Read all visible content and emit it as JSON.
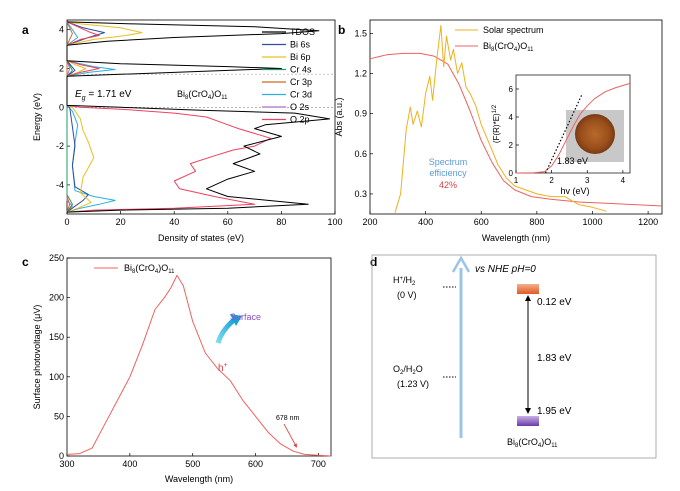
{
  "panels": {
    "a": "a",
    "b": "b",
    "c": "c",
    "d": "d"
  },
  "chart_data": [
    {
      "id": "a",
      "type": "line",
      "xlabel": "Density of states (eV)",
      "ylabel": "Energy (eV)",
      "xlim": [
        0,
        100
      ],
      "ylim": [
        -5.5,
        4.5
      ],
      "xticks": [
        "0",
        "20",
        "40",
        "60",
        "80",
        "100"
      ],
      "yticks": [
        "-4",
        "-2",
        "0",
        "2",
        "4"
      ],
      "annotations": {
        "eg_label": "E",
        "eg_sub": "g",
        "eg_value": " = 1.71 eV",
        "formula": "Bi8(CrO4)O11"
      },
      "legend": [
        "TDOS",
        "Bi 6s",
        "Bi 6p",
        "Cr 4s",
        "Cr 3p",
        "Cr 3d",
        "O 2s",
        "O 2p"
      ],
      "colors": {
        "TDOS": "#000000",
        "Bi 6s": "#2a4fa0",
        "Bi 6p": "#e8c020",
        "Cr 4s": "#1e9e6a",
        "Cr 3p": "#d2691e",
        "Cr 3d": "#2ab0e0",
        "O 2s": "#b070d0",
        "O 2p": "#f04060"
      },
      "series": [
        {
          "name": "TDOS",
          "points": [
            [
              0,
              -5.4
            ],
            [
              20,
              -5.3
            ],
            [
              60,
              -5.2
            ],
            [
              90,
              -5.0
            ],
            [
              60,
              -4.6
            ],
            [
              52,
              -4.2
            ],
            [
              60,
              -3.7
            ],
            [
              70,
              -3.3
            ],
            [
              62,
              -2.9
            ],
            [
              72,
              -2.4
            ],
            [
              66,
              -2.0
            ],
            [
              80,
              -1.5
            ],
            [
              70,
              -1.1
            ],
            [
              74,
              -0.9
            ],
            [
              90,
              -0.7
            ],
            [
              98,
              -0.6
            ],
            [
              85,
              -0.3
            ],
            [
              50,
              -0.15
            ],
            [
              20,
              0.0
            ],
            [
              0,
              0.1
            ],
            [
              0,
              1.6
            ],
            [
              20,
              1.7
            ],
            [
              60,
              1.9
            ],
            [
              80,
              2.0
            ],
            [
              60,
              2.1
            ],
            [
              20,
              2.25
            ],
            [
              0,
              2.4
            ],
            [
              0,
              3.2
            ],
            [
              15,
              3.4
            ],
            [
              40,
              3.6
            ],
            [
              80,
              3.8
            ],
            [
              94,
              3.95
            ],
            [
              70,
              4.15
            ],
            [
              25,
              4.3
            ],
            [
              0,
              4.4
            ]
          ]
        },
        {
          "name": "O 2p",
          "points": [
            [
              0,
              -5.4
            ],
            [
              10,
              -5.3
            ],
            [
              40,
              -5.2
            ],
            [
              70,
              -5.0
            ],
            [
              55,
              -4.6
            ],
            [
              42,
              -4.2
            ],
            [
              40,
              -3.8
            ],
            [
              48,
              -3.3
            ],
            [
              46,
              -2.9
            ],
            [
              55,
              -2.5
            ],
            [
              62,
              -2.2
            ],
            [
              70,
              -2.0
            ],
            [
              76,
              -1.6
            ],
            [
              64,
              -1.1
            ],
            [
              58,
              -0.8
            ],
            [
              52,
              -0.5
            ],
            [
              40,
              -0.3
            ],
            [
              20,
              -0.1
            ],
            [
              5,
              0.0
            ],
            [
              0,
              0.1
            ],
            [
              0,
              1.6
            ],
            [
              5,
              1.8
            ],
            [
              12,
              2.0
            ],
            [
              5,
              2.2
            ],
            [
              0,
              2.4
            ],
            [
              0,
              3.2
            ],
            [
              5,
              3.5
            ],
            [
              12,
              3.7
            ],
            [
              8,
              3.9
            ],
            [
              0,
              4.4
            ]
          ]
        },
        {
          "name": "Bi 6p",
          "points": [
            [
              0,
              -5.4
            ],
            [
              4,
              -5.2
            ],
            [
              9,
              -4.9
            ],
            [
              5,
              -4.4
            ],
            [
              6,
              -3.6
            ],
            [
              10,
              -2.6
            ],
            [
              8,
              -1.8
            ],
            [
              6,
              -1.2
            ],
            [
              5,
              -0.6
            ],
            [
              2,
              0.0
            ],
            [
              0,
              0.1
            ],
            [
              0,
              1.6
            ],
            [
              4,
              1.8
            ],
            [
              7,
              2.0
            ],
            [
              3,
              2.2
            ],
            [
              0,
              2.4
            ],
            [
              0,
              3.2
            ],
            [
              10,
              3.5
            ],
            [
              22,
              3.7
            ],
            [
              28,
              3.85
            ],
            [
              20,
              4.1
            ],
            [
              5,
              4.3
            ],
            [
              0,
              4.4
            ]
          ]
        },
        {
          "name": "Bi 6s",
          "points": [
            [
              0,
              -5.4
            ],
            [
              3,
              -5.1
            ],
            [
              6,
              -4.8
            ],
            [
              8,
              -4.5
            ],
            [
              3,
              -4.1
            ],
            [
              2,
              -3.0
            ],
            [
              3,
              -2.0
            ],
            [
              2,
              -1.0
            ],
            [
              1,
              0.0
            ],
            [
              0,
              0.1
            ],
            [
              0,
              1.6
            ],
            [
              3,
              1.9
            ],
            [
              0,
              2.4
            ],
            [
              0,
              3.2
            ],
            [
              8,
              3.6
            ],
            [
              14,
              3.85
            ],
            [
              6,
              4.1
            ],
            [
              0,
              4.4
            ]
          ]
        },
        {
          "name": "Cr 3d",
          "points": [
            [
              0,
              -5.4
            ],
            [
              5,
              -5.2
            ],
            [
              12,
              -5.0
            ],
            [
              18,
              -4.8
            ],
            [
              10,
              -4.6
            ],
            [
              3,
              -4.3
            ],
            [
              2,
              -3.0
            ],
            [
              3,
              -1.8
            ],
            [
              4,
              -0.9
            ],
            [
              2,
              -0.2
            ],
            [
              0,
              0.1
            ],
            [
              0,
              1.6
            ],
            [
              8,
              1.8
            ],
            [
              18,
              1.95
            ],
            [
              10,
              2.1
            ],
            [
              0,
              2.4
            ],
            [
              0,
              3.2
            ],
            [
              4,
              3.6
            ],
            [
              2,
              4.0
            ],
            [
              0,
              4.4
            ]
          ]
        },
        {
          "name": "Cr 4s",
          "points": [
            [
              0,
              -5.4
            ],
            [
              2,
              -5.0
            ],
            [
              0,
              -4.5
            ],
            [
              0,
              0.1
            ],
            [
              0,
              1.6
            ],
            [
              2,
              1.9
            ],
            [
              0,
              2.4
            ]
          ]
        },
        {
          "name": "Cr 3p",
          "points": [
            [
              0,
              -5.4
            ],
            [
              1,
              -5.0
            ],
            [
              0,
              -4.6
            ],
            [
              0,
              3.2
            ],
            [
              2,
              3.8
            ],
            [
              0,
              4.4
            ]
          ]
        },
        {
          "name": "O 2s",
          "points": [
            [
              0,
              -5.4
            ],
            [
              2,
              -5.1
            ],
            [
              0,
              -4.8
            ],
            [
              0,
              1.6
            ],
            [
              1,
              2.0
            ],
            [
              0,
              2.4
            ]
          ]
        }
      ]
    },
    {
      "id": "b",
      "type": "line",
      "xlabel": "Wavelength (nm)",
      "ylabel": "Abs (a.u.)",
      "xlim": [
        200,
        1250
      ],
      "ylim": [
        0.15,
        1.6
      ],
      "xticks": [
        "200",
        "400",
        "600",
        "800",
        "1000",
        "1200"
      ],
      "yticks": [
        "0.3",
        "0.6",
        "0.9",
        "1.2",
        "1.5"
      ],
      "legend": [
        "Solar spectrum",
        "Bi8(CrO4)O11"
      ],
      "annotations": {
        "line1": "Spectrum",
        "line2": "efficiency",
        "pct": "42%"
      },
      "series": [
        {
          "name": "Bi8(CrO4)O11",
          "color": "#f06060",
          "points": [
            [
              200,
              1.31
            ],
            [
              260,
              1.34
            ],
            [
              320,
              1.35
            ],
            [
              380,
              1.35
            ],
            [
              430,
              1.33
            ],
            [
              480,
              1.27
            ],
            [
              520,
              1.12
            ],
            [
              560,
              0.92
            ],
            [
              600,
              0.7
            ],
            [
              640,
              0.53
            ],
            [
              680,
              0.4
            ],
            [
              720,
              0.33
            ],
            [
              780,
              0.28
            ],
            [
              850,
              0.26
            ],
            [
              950,
              0.24
            ],
            [
              1050,
              0.23
            ],
            [
              1150,
              0.22
            ],
            [
              1250,
              0.21
            ]
          ]
        },
        {
          "name": "Solar spectrum",
          "color": "#f0b020",
          "points": [
            [
              290,
              0.16
            ],
            [
              310,
              0.3
            ],
            [
              330,
              0.78
            ],
            [
              345,
              0.95
            ],
            [
              355,
              0.82
            ],
            [
              370,
              0.92
            ],
            [
              385,
              0.8
            ],
            [
              400,
              1.05
            ],
            [
              415,
              1.18
            ],
            [
              425,
              1.0
            ],
            [
              440,
              1.3
            ],
            [
              455,
              1.56
            ],
            [
              465,
              1.25
            ],
            [
              475,
              1.48
            ],
            [
              490,
              1.3
            ],
            [
              500,
              1.38
            ],
            [
              515,
              1.2
            ],
            [
              530,
              1.28
            ],
            [
              545,
              1.1
            ],
            [
              560,
              1.05
            ],
            [
              580,
              0.96
            ],
            [
              600,
              0.82
            ],
            [
              620,
              0.72
            ],
            [
              640,
              0.62
            ],
            [
              660,
              0.52
            ],
            [
              690,
              0.42
            ],
            [
              720,
              0.36
            ],
            [
              760,
              0.33
            ],
            [
              800,
              0.3
            ],
            [
              850,
              0.28
            ],
            [
              900,
              0.28
            ],
            [
              950,
              0.22
            ],
            [
              1000,
              0.2
            ],
            [
              1050,
              0.17
            ]
          ]
        }
      ],
      "inset": {
        "xlabel": "hv (eV)",
        "ylabel": "(F(R)*E)^1/2",
        "xlim": [
          1,
          4.2
        ],
        "ylim": [
          0,
          7
        ],
        "xticks": [
          "1",
          "2",
          "3",
          "4"
        ],
        "yticks": [
          "0",
          "2",
          "4",
          "6"
        ],
        "annotation": "1.83 eV",
        "curve": [
          [
            1.0,
            0.0
          ],
          [
            1.5,
            0.02
          ],
          [
            1.8,
            0.1
          ],
          [
            2.0,
            0.5
          ],
          [
            2.2,
            1.3
          ],
          [
            2.4,
            2.3
          ],
          [
            2.6,
            3.3
          ],
          [
            2.8,
            4.2
          ],
          [
            3.0,
            4.8
          ],
          [
            3.2,
            5.3
          ],
          [
            3.5,
            5.8
          ],
          [
            3.8,
            6.1
          ],
          [
            4.2,
            6.4
          ]
        ],
        "fit": [
          [
            1.83,
            0.0
          ],
          [
            2.85,
            5.6
          ]
        ]
      }
    },
    {
      "id": "c",
      "type": "line",
      "xlabel": "Wavelength (nm)",
      "ylabel": "Surface photovoltage (μV)",
      "xlim": [
        300,
        720
      ],
      "ylim": [
        0,
        250
      ],
      "xticks": [
        "300",
        "400",
        "500",
        "600",
        "700"
      ],
      "yticks": [
        "0",
        "50",
        "100",
        "150",
        "200",
        "250"
      ],
      "legend": [
        "Bi8(CrO4)O11"
      ],
      "annotations": {
        "surface": "Surface",
        "hplus": "h+",
        "cutoff": "678 nm"
      },
      "series": [
        {
          "name": "Bi8(CrO4)O11",
          "color": "#f06060",
          "points": [
            [
              300,
              2
            ],
            [
              320,
              3
            ],
            [
              340,
              10
            ],
            [
              360,
              40
            ],
            [
              380,
              70
            ],
            [
              400,
              100
            ],
            [
              420,
              140
            ],
            [
              440,
              185
            ],
            [
              455,
              200
            ],
            [
              465,
              212
            ],
            [
              475,
              228
            ],
            [
              485,
              215
            ],
            [
              500,
              170
            ],
            [
              520,
              130
            ],
            [
              540,
              110
            ],
            [
              560,
              95
            ],
            [
              580,
              70
            ],
            [
              600,
              50
            ],
            [
              620,
              30
            ],
            [
              640,
              15
            ],
            [
              660,
              6
            ],
            [
              678,
              2
            ],
            [
              700,
              1
            ],
            [
              720,
              0
            ]
          ]
        }
      ]
    },
    {
      "id": "d",
      "type": "diagram",
      "title": "vs NHE pH=0",
      "levels": [
        {
          "name": "H+/H2",
          "value": "(0 V)"
        },
        {
          "name": "O2/H2O",
          "value": "(1.23 V)"
        }
      ],
      "cb": "0.12 eV",
      "gap": "1.83 eV",
      "vb": "1.95 eV",
      "material": "Bi8(CrO4)O11"
    }
  ]
}
